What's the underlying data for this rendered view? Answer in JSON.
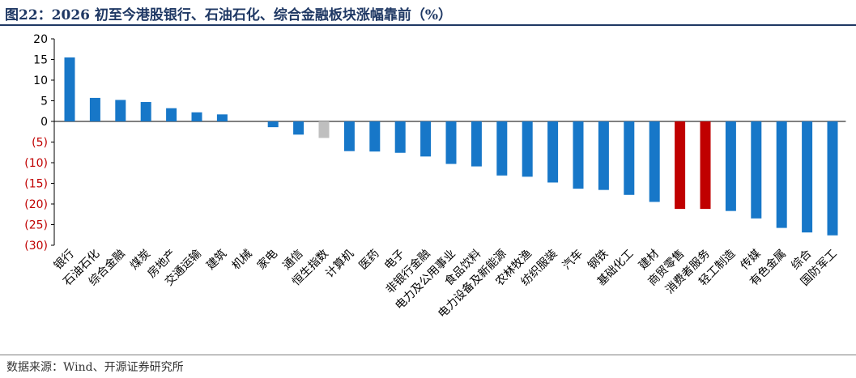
{
  "header": {
    "title": "图22：2026 初至今港股银行、石油石化、综合金融板块涨幅靠前（%）"
  },
  "footer": {
    "source": "数据来源：Wind、开源证券研究所"
  },
  "colors": {
    "title": "#1f3864",
    "bar_default": "#1777c8",
    "bar_highlight": "#c00000",
    "bar_index": "#bfbfbf",
    "negative_tick": "#c00000",
    "positive_tick": "#000000"
  },
  "chart_data": {
    "type": "bar",
    "title": "",
    "xlabel": "",
    "ylabel": "",
    "ylim": [
      -30,
      20
    ],
    "yticks": [
      20,
      15,
      10,
      5,
      0,
      -5,
      -10,
      -15,
      -20,
      -25,
      -30
    ],
    "ytick_labels": [
      "20",
      "15",
      "10",
      "5",
      "0",
      "(5)",
      "(10)",
      "(15)",
      "(20)",
      "(25)",
      "(30)"
    ],
    "grid": false,
    "legend": "none",
    "categories": [
      "银行",
      "石油石化",
      "综合金融",
      "煤炭",
      "房地产",
      "交通运输",
      "建筑",
      "机械",
      "家电",
      "通信",
      "恒生指数",
      "计算机",
      "医药",
      "电子",
      "非银行金融",
      "电力及公用事业",
      "食品饮料",
      "电力设备及新能源",
      "农林牧渔",
      "纺织服装",
      "汽车",
      "钢铁",
      "基础化工",
      "建材",
      "商贸零售",
      "消费者服务",
      "轻工制造",
      "传媒",
      "有色金属",
      "综合",
      "国防军工"
    ],
    "values": [
      15.5,
      5.7,
      5.2,
      4.7,
      3.2,
      2.2,
      1.7,
      0,
      -1.4,
      -3.2,
      -4.0,
      -7.2,
      -7.3,
      -7.6,
      -8.5,
      -10.3,
      -10.9,
      -13.1,
      -13.4,
      -14.8,
      -16.3,
      -16.6,
      -17.8,
      -19.5,
      -21.2,
      -21.2,
      -21.7,
      -23.5,
      -25.8,
      -26.9,
      -27.6
    ],
    "bar_colors": [
      "default",
      "default",
      "default",
      "default",
      "default",
      "default",
      "default",
      "default",
      "default",
      "default",
      "index",
      "default",
      "default",
      "default",
      "default",
      "default",
      "default",
      "default",
      "default",
      "default",
      "default",
      "default",
      "default",
      "default",
      "highlight",
      "highlight",
      "default",
      "default",
      "default",
      "default",
      "default"
    ]
  }
}
